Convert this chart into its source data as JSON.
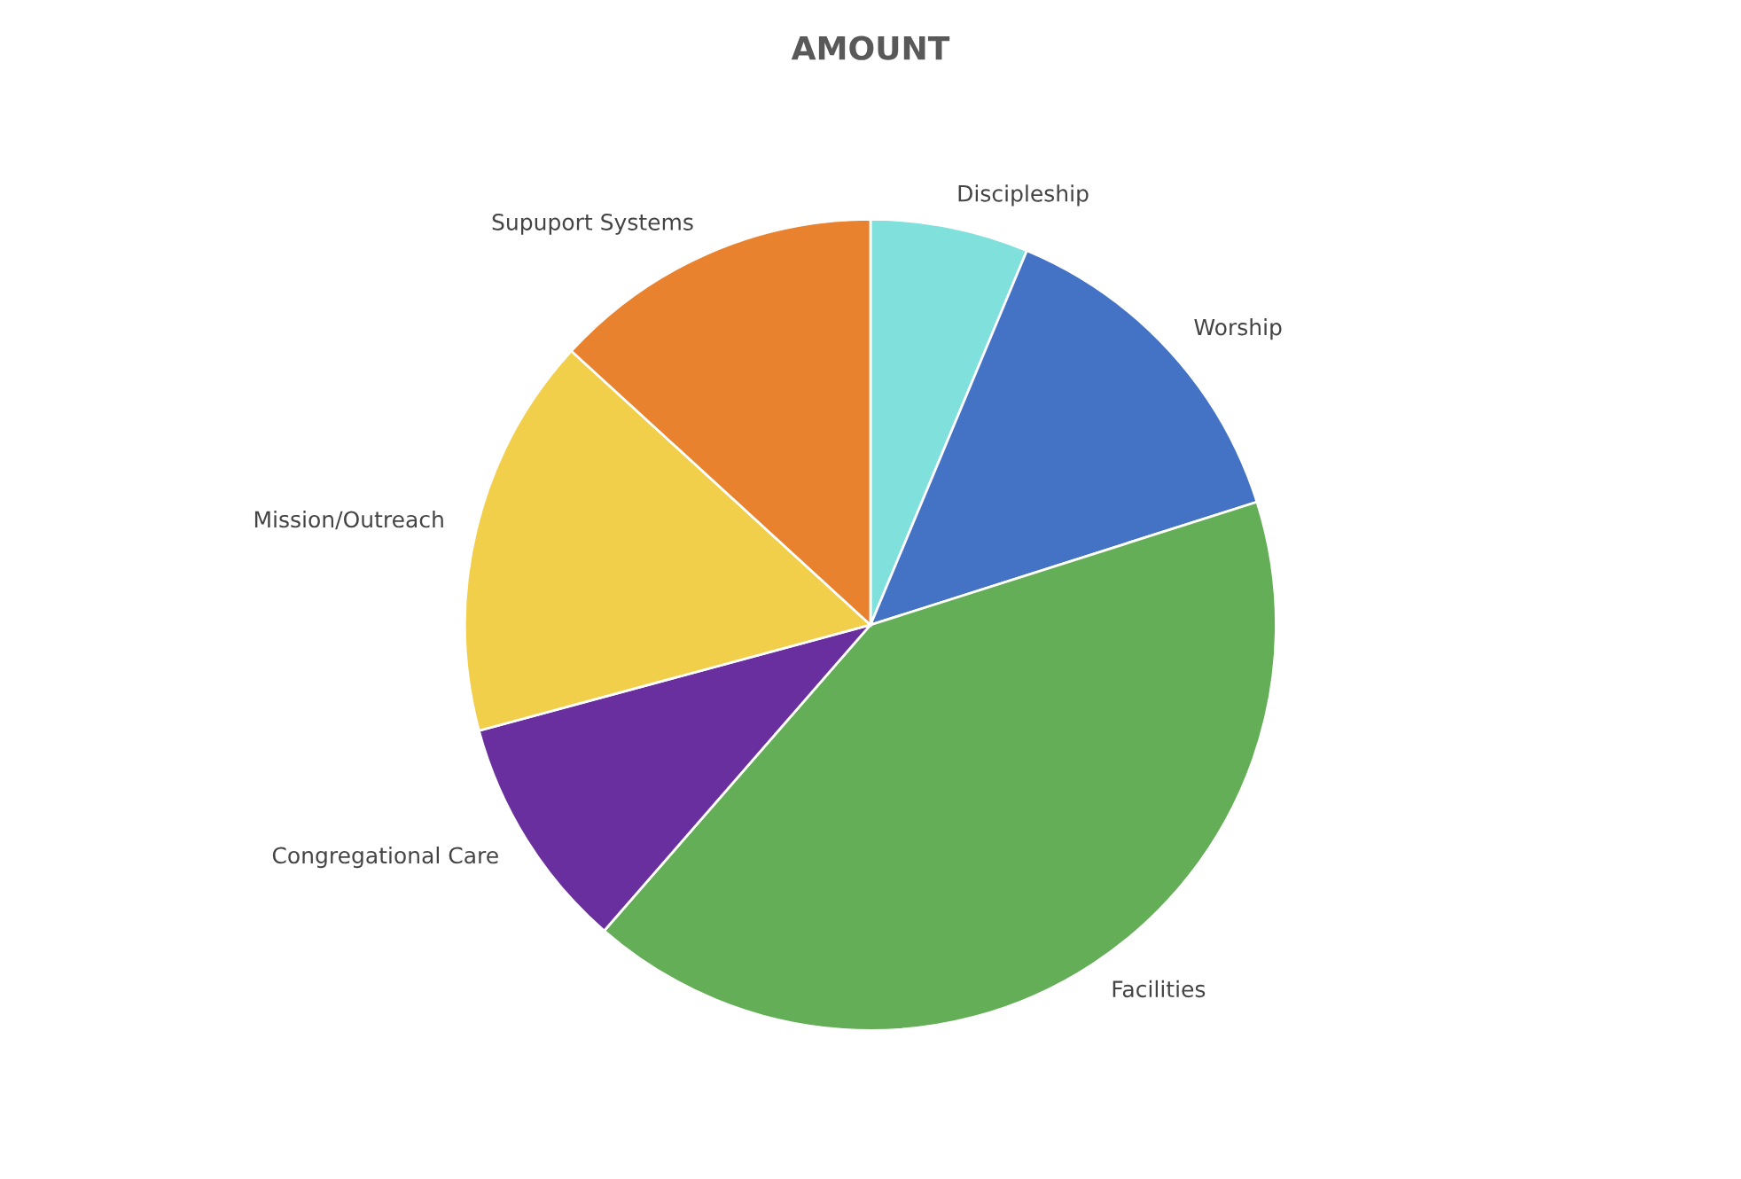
{
  "chart_data": {
    "type": "pie",
    "title": "AMOUNT",
    "categories": [
      "Discipleship",
      "Worship",
      "Facilities",
      "Congregational Care",
      "Mission/Outreach",
      "Supuport Systems"
    ],
    "values": [
      6.3,
      13.8,
      41.3,
      9.4,
      16.0,
      13.2
    ],
    "colors": [
      "#7fe0dc",
      "#4472c4",
      "#63ae56",
      "#6a2f9e",
      "#f2cf4a",
      "#e8822e"
    ],
    "legend": false
  }
}
